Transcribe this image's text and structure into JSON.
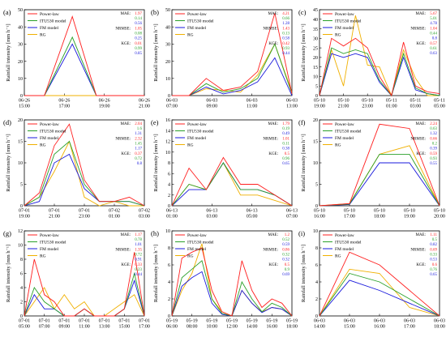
{
  "chart_data": [
    {
      "type": "line",
      "letter": "(a)",
      "x": [
        "06-26 15:00",
        "06-26 17:00",
        "06-26 19:00",
        "06-26 21:00"
      ],
      "xticks": [
        "06-26\n15:00",
        "06-26\n17:00",
        "06-26\n19:00",
        "06-26\n21:00"
      ],
      "ylim": [
        0,
        50
      ],
      "yticks": [
        0,
        10,
        20,
        30,
        40,
        50
      ],
      "ylabel": "Rainfall intensity [mm h⁻¹]",
      "series": [
        {
          "name": "Power-law",
          "color": "#ff2020",
          "values": [
            0,
            0,
            46,
            0,
            0,
            0,
            0
          ]
        },
        {
          "name": "ITU530 model",
          "color": "#2aa02a",
          "values": [
            0,
            0,
            34,
            0,
            0,
            0,
            0
          ]
        },
        {
          "name": "FM model",
          "color": "#1a1adc",
          "values": [
            0,
            0,
            30,
            0,
            0,
            0,
            0
          ]
        },
        {
          "name": "RG",
          "color": "#f0b000",
          "values": [
            0,
            0,
            0,
            0,
            0,
            0,
            0
          ]
        }
      ],
      "x_values": [
        0,
        0.5,
        1.2,
        1.8,
        2.3,
        2.8,
        3.0
      ],
      "metrics": {
        "MAE": [
          "1.97",
          "0.14",
          "0.56"
        ],
        "NRMSE": [
          "1.05",
          "0.08",
          "0.25"
        ],
        "KGE": [
          "0.01",
          "0.99",
          "0.85"
        ]
      }
    },
    {
      "type": "line",
      "letter": "(b)",
      "xticks": [
        "06-03\n07:00",
        "06-03\n09:00",
        "06-03\n11:00",
        "06-03\n13:00"
      ],
      "ylim": [
        0,
        50
      ],
      "yticks": [
        0,
        10,
        20,
        30,
        40,
        50
      ],
      "ylabel": "Rainfall intensity [mm h⁻¹]",
      "x_values": [
        0,
        0.5,
        1.0,
        1.5,
        2.0,
        2.5,
        3.0,
        3.5
      ],
      "series": [
        {
          "name": "Power-law",
          "color": "#ff2020",
          "values": [
            0,
            0,
            10,
            3,
            5,
            14,
            48,
            1
          ]
        },
        {
          "name": "ITU530 model",
          "color": "#2aa02a",
          "values": [
            0,
            0,
            7,
            2,
            4,
            10,
            30,
            1
          ]
        },
        {
          "name": "FM model",
          "color": "#1a1adc",
          "values": [
            0,
            0,
            5,
            1,
            3,
            8,
            22,
            0
          ]
        },
        {
          "name": "RG",
          "color": "#f0b000",
          "values": [
            0,
            0,
            4,
            3,
            2,
            12,
            30,
            2
          ]
        }
      ],
      "metrics": {
        "MAE": [
          "4.21",
          "0.66",
          "1.28"
        ],
        "NRMSE": [
          "1.43",
          "0.13",
          "0.58"
        ],
        "KGE": [
          "0.42",
          "0.93",
          "0.44"
        ]
      }
    },
    {
      "type": "line",
      "letter": "(c)",
      "xticks": [
        "05-10\n19:00",
        "05-10\n21:00",
        "05-10\n23:00",
        "05-11\n01:00",
        "05-11\n03:00",
        "05-11\n05:00"
      ],
      "ylim": [
        0,
        45
      ],
      "yticks": [
        0,
        5,
        10,
        15,
        20,
        25,
        30,
        35,
        40,
        45
      ],
      "ylabel": "Rainfall intensity [mm h⁻¹]",
      "x_values": [
        0,
        0.5,
        1.0,
        1.5,
        2.0,
        2.5,
        3.0,
        3.5,
        4.0,
        4.5,
        5.0
      ],
      "series": [
        {
          "name": "Power-law",
          "color": "#ff2020",
          "values": [
            0,
            30,
            26,
            30,
            25,
            10,
            0,
            28,
            5,
            2,
            1
          ]
        },
        {
          "name": "ITU530 model",
          "color": "#2aa02a",
          "values": [
            0,
            25,
            22,
            24,
            22,
            8,
            0,
            22,
            4,
            1,
            0
          ]
        },
        {
          "name": "FM model",
          "color": "#1a1adc",
          "values": [
            0,
            22,
            20,
            22,
            20,
            7,
            0,
            20,
            3,
            1,
            0
          ]
        },
        {
          "name": "RG",
          "color": "#f0b000",
          "values": [
            0,
            24,
            5,
            42,
            16,
            15,
            0,
            24,
            9,
            0,
            0
          ]
        }
      ],
      "metrics": {
        "MAE": [
          "5.67",
          "5.01",
          "4.78"
        ],
        "NRMSE": [
          "1.04",
          "0.44",
          "0.8"
        ],
        "KGE": [
          "0.57",
          "0.61",
          "0.63"
        ]
      }
    },
    {
      "type": "line",
      "letter": "(d)",
      "xticks": [
        "07-01\n19:00",
        "07-01\n21:00",
        "07-01\n23:00",
        "07-02\n01:00",
        "07-02\n03:00"
      ],
      "ylim": [
        0,
        20
      ],
      "yticks": [
        0,
        5,
        10,
        15,
        20
      ],
      "ylabel": "Rainfall intensity [mm h⁻¹]",
      "x_values": [
        0,
        0.5,
        1.0,
        1.5,
        2.0,
        2.5,
        3.0,
        3.5,
        4.0
      ],
      "series": [
        {
          "name": "Power-law",
          "color": "#ff2020",
          "values": [
            0,
            3,
            14,
            19,
            6,
            1,
            1,
            2,
            0
          ]
        },
        {
          "name": "ITU530 model",
          "color": "#2aa02a",
          "values": [
            0,
            2,
            12,
            15,
            5,
            1,
            1,
            1,
            0
          ]
        },
        {
          "name": "FM model",
          "color": "#1a1adc",
          "values": [
            0,
            1,
            10,
            12,
            4,
            1,
            1,
            1,
            0
          ]
        },
        {
          "name": "RG",
          "color": "#f0b000",
          "values": [
            0,
            2,
            8,
            15,
            2,
            0,
            1,
            0,
            0
          ]
        }
      ],
      "metrics": {
        "MAE": [
          "2.04",
          "1.6",
          "1.31"
        ],
        "NRMSE": [
          "2.32",
          "1.45",
          "1.17"
        ],
        "KGE": [
          "0.37",
          "0.72",
          "0.8"
        ]
      }
    },
    {
      "type": "line",
      "letter": "(e)",
      "xticks": [
        "06-13\n01:00",
        "06-13\n03:00",
        "06-13\n05:00",
        "06-13\n07:00"
      ],
      "ylim": [
        0,
        16
      ],
      "yticks": [
        0,
        2,
        4,
        6,
        8,
        10,
        12,
        14,
        16
      ],
      "ylabel": "Rainfall intensity [mm h⁻¹]",
      "x_values": [
        0,
        0.5,
        1.0,
        1.5,
        2.0,
        2.5,
        3.0,
        3.5
      ],
      "series": [
        {
          "name": "Power-law",
          "color": "#ff2020",
          "values": [
            0,
            7,
            3,
            9,
            4,
            4,
            2,
            0
          ]
        },
        {
          "name": "ITU530 model",
          "color": "#2aa02a",
          "values": [
            0,
            4,
            3,
            8,
            3,
            3,
            2,
            0
          ]
        },
        {
          "name": "FM model",
          "color": "#1a1adc",
          "values": [
            0,
            3,
            3,
            8,
            3,
            3,
            2,
            0
          ]
        },
        {
          "name": "RG",
          "color": "#f0b000",
          "values": [
            0,
            4,
            3,
            8,
            2,
            2,
            1,
            0
          ]
        }
      ],
      "metrics": {
        "MAE": [
          "1.79",
          "0.19",
          "0.49"
        ],
        "NRMSE": [
          "1.01",
          "0.11",
          "0.38"
        ],
        "KGE": [
          "0.5",
          "0.96",
          "0.65"
        ]
      }
    },
    {
      "type": "line",
      "letter": "(f)",
      "xticks": [
        "05-10\n16:00",
        "05-10\n17:00",
        "05-10\n18:00",
        "05-10\n19:00",
        "05-10\n20:00"
      ],
      "ylim": [
        0,
        20
      ],
      "yticks": [
        0,
        5,
        10,
        15,
        20
      ],
      "ylabel": "Rainfall intensity [mm h⁻¹]",
      "x_values": [
        0,
        1,
        2,
        3,
        4
      ],
      "series": [
        {
          "name": "Power-law",
          "color": "#ff2020",
          "values": [
            0,
            0.5,
            19,
            18,
            0
          ]
        },
        {
          "name": "ITU530 model",
          "color": "#2aa02a",
          "values": [
            0,
            0.4,
            12,
            12,
            0
          ]
        },
        {
          "name": "FM model",
          "color": "#1a1adc",
          "values": [
            0,
            0.3,
            10,
            10,
            0
          ]
        },
        {
          "name": "RG",
          "color": "#f0b000",
          "values": [
            0,
            0.5,
            12,
            14,
            0
          ]
        }
      ],
      "metrics": {
        "MAE": [
          "2.24",
          "0.63",
          "1.32"
        ],
        "NRMSE": [
          "0.66",
          "0.2",
          "0.39"
        ],
        "KGE": [
          "0.59",
          "0.93",
          "0.55"
        ]
      }
    },
    {
      "type": "line",
      "letter": "(g)",
      "xticks": [
        "07-01\n05:00",
        "07-01\n07:00",
        "07-01\n09:00",
        "07-01\n11:00",
        "07-01\n13:00",
        "07-01\n15:00",
        "07-01\n17:00"
      ],
      "ylim": [
        0,
        12
      ],
      "yticks": [
        0,
        2,
        4,
        6,
        8,
        10,
        12
      ],
      "ylabel": "Rainfall intensity [mm h⁻¹]",
      "x_values": [
        0,
        0.5,
        1.0,
        1.5,
        2.0,
        2.5,
        3.0,
        3.5,
        4.0,
        4.5,
        5.0,
        5.5,
        6.0
      ],
      "series": [
        {
          "name": "Power-law",
          "color": "#ff2020",
          "values": [
            0,
            8,
            3,
            2,
            0,
            0,
            1,
            0,
            0,
            0,
            1,
            9,
            0
          ]
        },
        {
          "name": "ITU530 model",
          "color": "#2aa02a",
          "values": [
            0,
            4,
            2,
            1,
            0,
            0,
            1,
            0,
            0,
            0,
            1,
            6,
            0
          ]
        },
        {
          "name": "FM model",
          "color": "#1a1adc",
          "values": [
            0,
            3,
            1,
            1,
            0,
            0,
            1,
            0,
            0,
            0,
            1,
            5,
            0
          ]
        },
        {
          "name": "RG",
          "color": "#f0b000",
          "values": [
            0,
            2,
            4,
            1,
            3,
            1,
            2,
            0,
            0,
            1,
            2,
            3,
            0
          ]
        }
      ],
      "metrics": {
        "MAE": [
          "1.17",
          "0.78",
          "1.01"
        ],
        "NRMSE": [
          "1.35",
          "0.72",
          "0.91"
        ],
        "KGE": [
          "0.33",
          "0.23",
          "-0.44"
        ]
      }
    },
    {
      "type": "line",
      "letter": "(h)",
      "xticks": [
        "05-19\n06:00",
        "05-19\n08:00",
        "05-19\n10:00",
        "05-19\n12:00",
        "05-19\n14:00",
        "05-19\n16:00",
        "05-19\n18:00"
      ],
      "ylim": [
        0,
        10
      ],
      "yticks": [
        0,
        2,
        4,
        6,
        8,
        10
      ],
      "ylabel": "Rainfall intensity [mm h⁻¹]",
      "x_values": [
        0,
        0.5,
        1.0,
        1.5,
        2.0,
        2.5,
        3.0,
        3.5,
        4.0,
        4.5,
        5.0,
        5.5,
        6.0
      ],
      "series": [
        {
          "name": "Power-law",
          "color": "#ff2020",
          "values": [
            0,
            6.8,
            7.5,
            8,
            3,
            0.5,
            0,
            6.5,
            3,
            1,
            2,
            1.5,
            0
          ]
        },
        {
          "name": "ITU530 model",
          "color": "#2aa02a",
          "values": [
            0,
            4.5,
            5.5,
            6.5,
            2,
            0.3,
            0,
            4,
            2,
            0.5,
            1.5,
            1,
            0
          ]
        },
        {
          "name": "FM model",
          "color": "#1a1adc",
          "values": [
            0,
            3.5,
            4.5,
            5.2,
            1.5,
            0.2,
            0,
            3,
            1.5,
            0.4,
            1,
            0.8,
            0
          ]
        },
        {
          "name": "RG",
          "color": "#f0b000",
          "values": [
            0,
            3,
            5,
            8.5,
            2,
            0.5,
            0,
            3,
            1.5,
            0.5,
            1,
            0.8,
            0
          ]
        }
      ],
      "metrics": {
        "MAE": [
          "1.2",
          "0.52",
          "0.59"
        ],
        "NRMSE": [
          "0.86",
          "0.32",
          "0.32"
        ],
        "KGE": [
          "0.5",
          "0.9",
          "0.69"
        ]
      }
    },
    {
      "type": "line",
      "letter": "(i)",
      "xticks": [
        "06-03\n14:00",
        "06-03\n15:00",
        "06-03\n16:00",
        "06-03\n17:00",
        "06-03\n18:00"
      ],
      "ylim": [
        0,
        10
      ],
      "yticks": [
        0,
        2,
        4,
        6,
        8,
        10
      ],
      "ylabel": "Rainfall intensity [mm h⁻¹]",
      "x_values": [
        0,
        1,
        2,
        3,
        4
      ],
      "series": [
        {
          "name": "Power-law",
          "color": "#ff2020",
          "values": [
            0,
            7.5,
            6,
            3,
            0
          ]
        },
        {
          "name": "ITU530 model",
          "color": "#2aa02a",
          "values": [
            0,
            5,
            4,
            2,
            0
          ]
        },
        {
          "name": "FM model",
          "color": "#1a1adc",
          "values": [
            0,
            4.2,
            3,
            1.5,
            0
          ]
        },
        {
          "name": "RG",
          "color": "#f0b000",
          "values": [
            0,
            5.5,
            5,
            1,
            0
          ]
        }
      ],
      "metrics": {
        "MAE": [
          "1.11",
          "0.5",
          "0.82"
        ],
        "NRMSE": [
          "0.69",
          "0.33",
          "0.53"
        ],
        "KGE": [
          "0.6",
          "0.76",
          "0.65"
        ]
      }
    }
  ]
}
